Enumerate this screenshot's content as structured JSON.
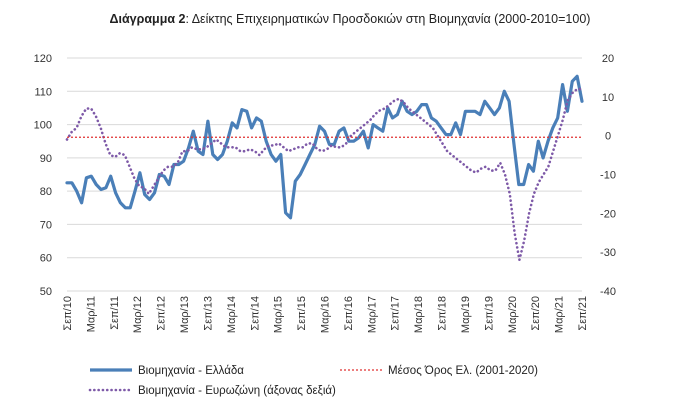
{
  "chart_data": {
    "type": "line",
    "title_prefix": "Διάγραμμα 2",
    "title_rest": ": Δείκτης Επιχειρηματικών Προσδοκιών στη Βιομηχανία (2000-2010=100)",
    "left_axis": {
      "ylim": [
        50,
        120
      ],
      "ticks": [
        "50",
        "60",
        "70",
        "80",
        "90",
        "100",
        "110",
        "120"
      ]
    },
    "right_axis": {
      "ylim": [
        -40,
        20
      ],
      "ticks": [
        "-40",
        "-30",
        "-20",
        "-10",
        "0",
        "10",
        "20"
      ]
    },
    "grid": "horizontal",
    "legend_placement": "bottom",
    "x_ticks": [
      "Σεπ/10",
      "Μαρ/11",
      "Σεπ/11",
      "Μαρ/12",
      "Σεπ/12",
      "Μαρ/13",
      "Σεπ/13",
      "Μαρ/14",
      "Σεπ/14",
      "Μαρ/15",
      "Σεπ/15",
      "Μαρ/16",
      "Σεπ/16",
      "Μαρ/17",
      "Σεπ/17",
      "Μαρ/18",
      "Σεπ/18",
      "Μαρ/19",
      "Σεπ/19",
      "Μαρ/20",
      "Σεπ/20",
      "Μαρ/21",
      "Σεπ/21"
    ],
    "series": [
      {
        "name": "Βιομηχανία  - Ελλάδα",
        "axis": "left",
        "style": "solid",
        "color": "#4a7fb8",
        "values": [
          82.5,
          82.5,
          80,
          76.5,
          84,
          84.5,
          82,
          80.5,
          81,
          84.5,
          79.5,
          76.5,
          75,
          75,
          80,
          85.5,
          79,
          77.5,
          79.5,
          85,
          84.5,
          82,
          88,
          88,
          89,
          93,
          98,
          92,
          91,
          101,
          91,
          89.5,
          91,
          95,
          100.5,
          99,
          104.5,
          104,
          99,
          102,
          101,
          95,
          91,
          89,
          91,
          73.5,
          72,
          83,
          85,
          88,
          91,
          94,
          99.5,
          98,
          94,
          94,
          98,
          99,
          95,
          95,
          96,
          98,
          93,
          100,
          99,
          98,
          105,
          102,
          103,
          107,
          104,
          103,
          104,
          106,
          106,
          102,
          101,
          99,
          97,
          97,
          100.5,
          97,
          104,
          104,
          104,
          103,
          107,
          105,
          103,
          105,
          110,
          107,
          94,
          82,
          82,
          88,
          86,
          95,
          90,
          95,
          99,
          102,
          112,
          104,
          113,
          114.5,
          107
        ]
      },
      {
        "name": "Βιομηχανία - Ευρωζώνη (άξονας δεξιά)",
        "axis": "right",
        "style": "dotted",
        "color": "#7e5aa8",
        "values": [
          -1,
          1,
          2,
          5,
          7,
          7,
          5,
          2,
          -2,
          -5,
          -5.5,
          -4.5,
          -5,
          -8,
          -11,
          -13,
          -13.5,
          -15,
          -13,
          -11,
          -9,
          -8,
          -8,
          -7,
          -4,
          -4,
          -3,
          -3.5,
          -3.5,
          -3,
          -2,
          -1,
          -2,
          -3,
          -3,
          -3,
          -4,
          -4,
          -3.5,
          -4,
          -5,
          -3.5,
          -2.5,
          -2.5,
          -2,
          -3,
          -4,
          -3.5,
          -3,
          -3,
          -2,
          -2,
          -3.5,
          -4,
          -3.5,
          -2.5,
          -3,
          -3,
          -2,
          0,
          1,
          2,
          3,
          4,
          5.5,
          6.5,
          7,
          8,
          9,
          9.5,
          8.5,
          7,
          6,
          5,
          4,
          3,
          2,
          0,
          -2,
          -4,
          -5,
          -6,
          -7,
          -8,
          -9,
          -9.5,
          -8.5,
          -8,
          -9,
          -9,
          -7,
          -10,
          -15,
          -25,
          -32,
          -27,
          -20,
          -15,
          -12,
          -10,
          -8,
          -4,
          0,
          4,
          9,
          11,
          12,
          12
        ]
      },
      {
        "name": "Μέσος Όρος Ελ. (2001-2020)",
        "axis": "left",
        "style": "dotted-red",
        "color": "#e03030",
        "constant": 96.2
      }
    ]
  }
}
